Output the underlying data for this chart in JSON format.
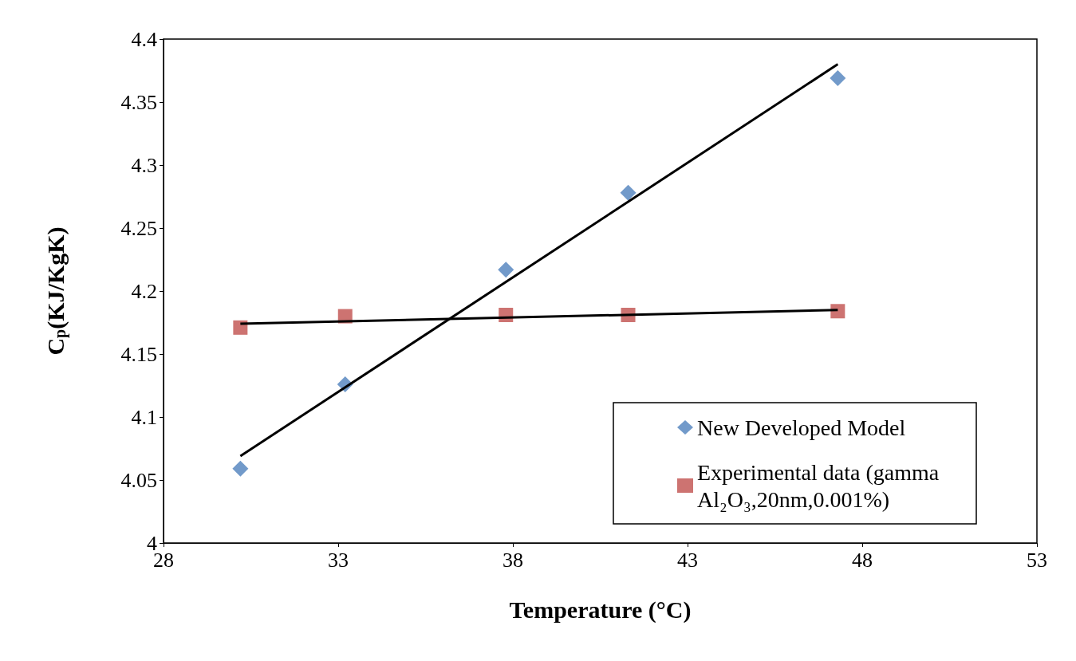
{
  "chart_data": {
    "type": "scatter",
    "xlabel": "Temperature (°C)",
    "ylabel": "C$_{p}$(KJ/KgK)",
    "xlim": [
      28,
      53
    ],
    "xticks": [
      28,
      33,
      38,
      43,
      48,
      53
    ],
    "ylim": [
      4,
      4.4
    ],
    "yticks": [
      4,
      4.05,
      4.1,
      4.15,
      4.2,
      4.25,
      4.3,
      4.35,
      4.4
    ],
    "grid": false,
    "legend": "bottom right",
    "series": [
      {
        "name": "New Developed Model",
        "color": "#4f81bd",
        "marker": "diamond",
        "x": [
          30.2,
          33.2,
          37.8,
          41.3,
          47.3
        ],
        "values": [
          4.059,
          4.126,
          4.217,
          4.278,
          4.369
        ]
      },
      {
        "name": "Experimental data (gamma Al₂O₃,20nm,0.001%)",
        "color": "#c0504d",
        "marker": "square",
        "x": [
          30.2,
          33.2,
          37.8,
          41.3,
          47.3
        ],
        "values": [
          4.171,
          4.18,
          4.181,
          4.181,
          4.184
        ]
      },
      {
        "type": "line",
        "color": "#000000",
        "marker": "none",
        "x": [
          30.2,
          47.3
        ],
        "values": [
          4.069,
          4.38
        ]
      },
      {
        "type": "line",
        "color": "#000000",
        "marker": "none",
        "x": [
          30.2,
          47.3
        ],
        "values": [
          4.174,
          4.185
        ]
      }
    ]
  }
}
